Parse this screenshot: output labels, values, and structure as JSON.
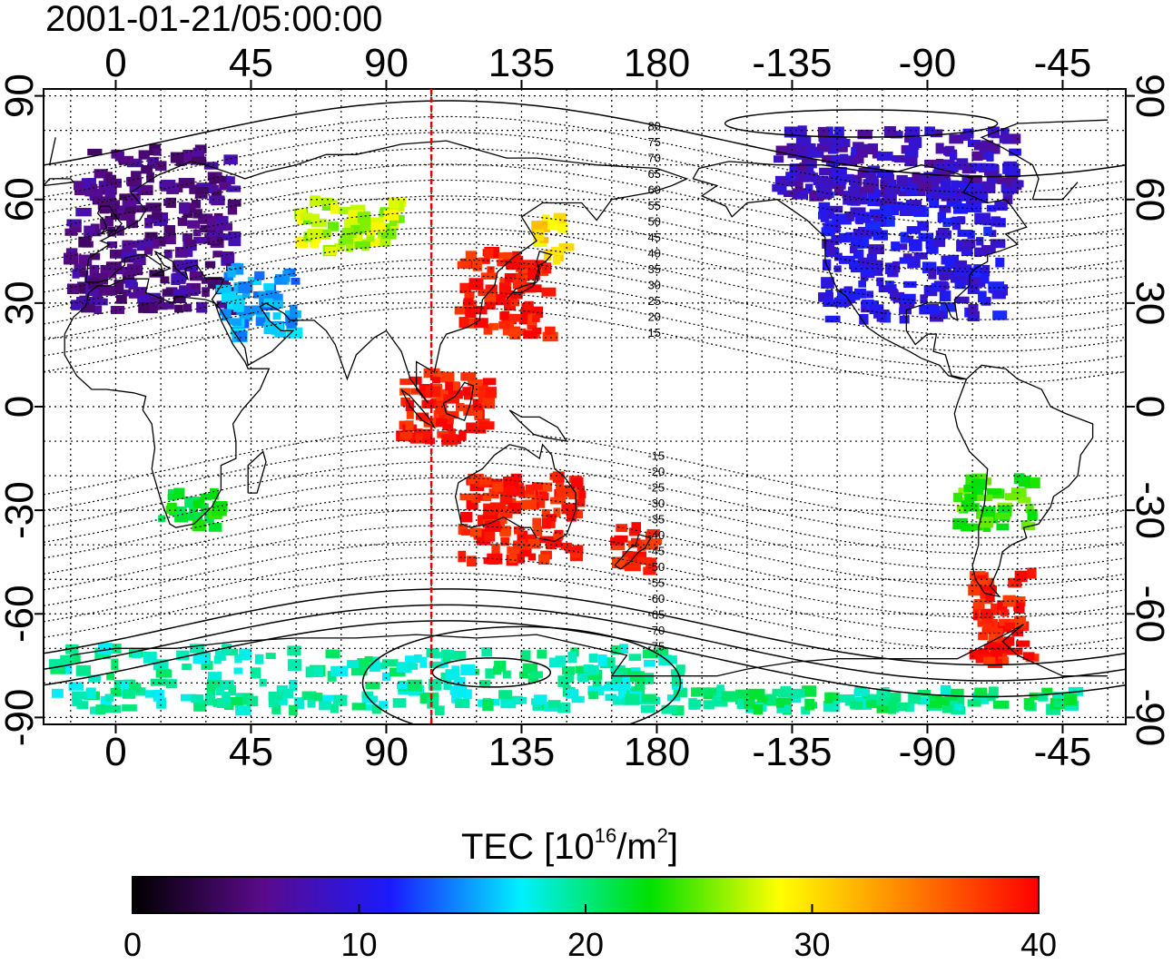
{
  "timestamp": "2001-01-21/05:00:00",
  "map": {
    "lon_ticks": [
      "0",
      "45",
      "90",
      "135",
      "180",
      "-135",
      "-90",
      "-45"
    ],
    "lat_ticks": [
      "90",
      "60",
      "30",
      "0",
      "-30",
      "-60",
      "-90"
    ],
    "lon_range": [
      -24,
      336
    ],
    "lat_range": [
      -92,
      92
    ],
    "terminator_longitude": 105,
    "contour_labels_north": [
      "80",
      "75",
      "70",
      "65",
      "60",
      "55",
      "50",
      "45",
      "40",
      "35",
      "30",
      "25",
      "20",
      "15"
    ],
    "contour_labels_south": [
      "-15",
      "-20",
      "-25",
      "-30",
      "-35",
      "-40",
      "-45",
      "-50",
      "-55",
      "-60",
      "-65",
      "-70",
      "-75"
    ],
    "colors": {
      "terminator": "#e00000",
      "grid": "#000000",
      "coast": "#000000"
    }
  },
  "colorbar": {
    "title_prefix": "TEC  [10",
    "title_sup": "16",
    "title_mid": "/m",
    "title_sup2": "2",
    "title_suffix": "]",
    "min": 0,
    "max": 40,
    "tick_labels": [
      "0",
      "10",
      "20",
      "30",
      "40"
    ],
    "stops": [
      "#000000",
      "#5a0a8a",
      "#1b1bff",
      "#00f0ff",
      "#00e000",
      "#ffff00",
      "#ff8000",
      "#ff0000"
    ]
  },
  "tec_regions": [
    {
      "name": "europe",
      "lon": [
        -15,
        40
      ],
      "lat": [
        28,
        75
      ],
      "tec": 6
    },
    {
      "name": "north-america",
      "lon": [
        -125,
        -65
      ],
      "lat": [
        25,
        65
      ],
      "tec": 10
    },
    {
      "name": "east-asia",
      "lon": [
        115,
        145
      ],
      "lat": [
        20,
        45
      ],
      "tec": 39
    },
    {
      "name": "japan-north",
      "lon": [
        140,
        150
      ],
      "lat": [
        42,
        55
      ],
      "tec": 30
    },
    {
      "name": "siberia",
      "lon": [
        60,
        95
      ],
      "lat": [
        45,
        60
      ],
      "tec": 27
    },
    {
      "name": "southern-africa",
      "lon": [
        15,
        35
      ],
      "lat": [
        -35,
        -25
      ],
      "tec": 22
    },
    {
      "name": "indonesia",
      "lon": [
        95,
        125
      ],
      "lat": [
        -10,
        10
      ],
      "tec": 39
    },
    {
      "name": "australia",
      "lon": [
        115,
        155
      ],
      "lat": [
        -45,
        -20
      ],
      "tec": 39
    },
    {
      "name": "new-zealand",
      "lon": [
        165,
        180
      ],
      "lat": [
        -48,
        -35
      ],
      "tec": 39
    },
    {
      "name": "south-america-north",
      "lon": [
        -80,
        -55
      ],
      "lat": [
        -35,
        -20
      ],
      "tec": 24
    },
    {
      "name": "patagonia",
      "lon": [
        -75,
        -55
      ],
      "lat": [
        -75,
        -48
      ],
      "tec": 39
    },
    {
      "name": "antarctic-coast",
      "lon": [
        -20,
        190
      ],
      "lat": [
        -88,
        -70
      ],
      "tec": 19
    },
    {
      "name": "antarctic-west",
      "lon": [
        190,
        320
      ],
      "lat": [
        -88,
        -82
      ],
      "tec": 20
    },
    {
      "name": "arctic-canada",
      "lon": [
        -140,
        -60
      ],
      "lat": [
        60,
        80
      ],
      "tec": 8
    },
    {
      "name": "middle-east",
      "lon": [
        35,
        60
      ],
      "lat": [
        20,
        40
      ],
      "tec": 15
    }
  ]
}
